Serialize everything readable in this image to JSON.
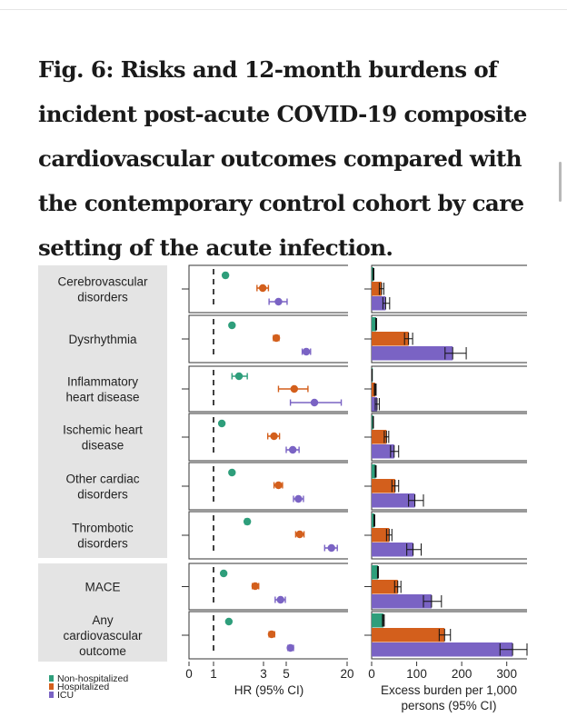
{
  "title": "Fig. 6: Risks and 12-month burdens of incident post-acute COVID-19 composite cardiovascular outcomes compared with the contemporary control cohort by care setting of the acute infection.",
  "colors": {
    "non_hospitalized": "#2e9e7b",
    "hospitalized": "#d35f1c",
    "icu": "#7a63c4",
    "label_bg": "#e4e4e4"
  },
  "chart_data": {
    "type": "forest-and-bar",
    "series": [
      {
        "name": "Non-hospitalized",
        "color": "#2e9e7b"
      },
      {
        "name": "Hospitalized",
        "color": "#d35f1c"
      },
      {
        "name": "ICU",
        "color": "#7a63c4"
      }
    ],
    "groups": [
      {
        "label": [
          "Cerebrovascular",
          "disorders"
        ],
        "hr": [
          [
            1.3,
            1.25,
            1.36
          ],
          [
            2.95,
            2.6,
            3.35
          ],
          [
            4.2,
            3.4,
            5.1
          ]
        ],
        "burden": [
          [
            4,
            3,
            5
          ],
          [
            22,
            17,
            27
          ],
          [
            31,
            25,
            40
          ]
        ]
      },
      {
        "label": [
          "Dysrhythmia"
        ],
        "hr": [
          [
            1.5,
            1.46,
            1.55
          ],
          [
            4.0,
            3.75,
            4.25
          ],
          [
            7.9,
            7.2,
            8.7
          ]
        ],
        "burden": [
          [
            10,
            9,
            11
          ],
          [
            82,
            73,
            91
          ],
          [
            180,
            163,
            210
          ]
        ]
      },
      {
        "label": [
          "Inflammatory",
          "heart disease"
        ],
        "hr": [
          [
            1.75,
            1.5,
            2.1
          ],
          [
            6.0,
            4.2,
            8.2
          ],
          [
            9.5,
            5.5,
            17.5
          ]
        ],
        "burden": [
          [
            1,
            0.8,
            1.3
          ],
          [
            8,
            6,
            10
          ],
          [
            12,
            8,
            17
          ]
        ]
      },
      {
        "label": [
          "Ischemic heart",
          "disease"
        ],
        "hr": [
          [
            1.2,
            1.17,
            1.24
          ],
          [
            3.8,
            3.3,
            4.3
          ],
          [
            5.8,
            5.0,
            6.7
          ]
        ],
        "burden": [
          [
            3.5,
            3,
            4
          ],
          [
            33,
            28,
            38
          ],
          [
            50,
            42,
            60
          ]
        ]
      },
      {
        "label": [
          "Other cardiac",
          "disorders"
        ],
        "hr": [
          [
            1.5,
            1.46,
            1.55
          ],
          [
            4.2,
            3.8,
            4.6
          ],
          [
            6.6,
            5.9,
            7.4
          ]
        ],
        "burden": [
          [
            9,
            8,
            10
          ],
          [
            52,
            45,
            60
          ],
          [
            96,
            82,
            115
          ]
        ]
      },
      {
        "label": [
          "Thrombotic",
          "disorders"
        ],
        "hr": [
          [
            2.1,
            2.0,
            2.2
          ],
          [
            6.8,
            6.2,
            7.5
          ],
          [
            14.0,
            12.0,
            16.0
          ]
        ],
        "burden": [
          [
            6,
            5,
            7
          ],
          [
            39,
            33,
            45
          ],
          [
            92,
            78,
            110
          ]
        ]
      },
      {
        "label": [
          "MACE"
        ],
        "hr": [
          [
            1.25,
            1.21,
            1.29
          ],
          [
            2.5,
            2.35,
            2.7
          ],
          [
            4.4,
            3.9,
            4.9
          ]
        ],
        "burden": [
          [
            14,
            13,
            15
          ],
          [
            58,
            51,
            65
          ],
          [
            133,
            115,
            155
          ]
        ]
      },
      {
        "label": [
          "Any",
          "cardiovascular",
          "outcome"
        ],
        "hr": [
          [
            1.4,
            1.36,
            1.44
          ],
          [
            3.6,
            3.4,
            3.85
          ],
          [
            5.5,
            5.2,
            5.9
          ]
        ],
        "burden": [
          [
            26,
            24,
            28
          ],
          [
            162,
            150,
            175
          ],
          [
            313,
            285,
            345
          ]
        ]
      }
    ],
    "hr_axis": {
      "label": "HR (95% CI)",
      "ticks": [
        "0",
        "1",
        "3",
        "5",
        "20"
      ],
      "reference_line": 1,
      "scale": "log-like"
    },
    "burden_axis": {
      "label_lines": [
        "Excess burden per 1,000",
        "persons (95% CI)"
      ],
      "ticks": [
        "0",
        "100",
        "200",
        "300"
      ],
      "range": [
        0,
        345
      ]
    },
    "legend": [
      "Non-hospitalized",
      "Hospitalized",
      "ICU"
    ],
    "legend_position": "bottom-left"
  }
}
